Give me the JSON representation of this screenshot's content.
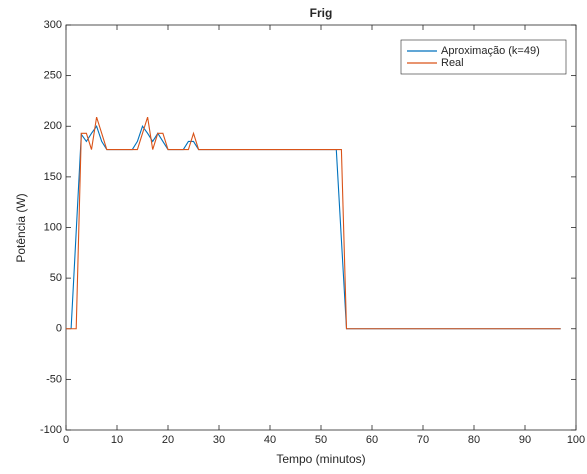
{
  "chart_data": {
    "type": "line",
    "title": "Frig",
    "xlabel": "Tempo (minutos)",
    "ylabel": "Potência (W)",
    "x": [
      0,
      1,
      2,
      3,
      4,
      5,
      6,
      7,
      8,
      9,
      10,
      11,
      12,
      13,
      14,
      15,
      16,
      17,
      18,
      19,
      20,
      21,
      22,
      23,
      24,
      25,
      26,
      27,
      28,
      29,
      30,
      31,
      32,
      33,
      34,
      35,
      36,
      37,
      38,
      39,
      40,
      41,
      42,
      43,
      44,
      45,
      46,
      47,
      48,
      49,
      50,
      51,
      52,
      53,
      54,
      55,
      56,
      57,
      58,
      59,
      60,
      61,
      62,
      63,
      64,
      65,
      66,
      67,
      68,
      69,
      70,
      71,
      72,
      73,
      74,
      75,
      76,
      77,
      78,
      79,
      80,
      81,
      82,
      83,
      84,
      85,
      86,
      87,
      88,
      89,
      90,
      91,
      92,
      93,
      94,
      95,
      96,
      97
    ],
    "series": [
      {
        "name": "Aproximação (k=49)",
        "color": "#0072bd",
        "values": [
          null,
          0,
          96,
          192,
          185,
          193,
          200,
          185,
          177,
          177,
          177,
          177,
          177,
          177,
          185,
          200,
          193,
          185,
          193,
          185,
          177,
          177,
          177,
          177,
          185,
          185,
          177,
          177,
          177,
          177,
          177,
          177,
          177,
          177,
          177,
          177,
          177,
          177,
          177,
          177,
          177,
          177,
          177,
          177,
          177,
          177,
          177,
          177,
          177,
          177,
          177,
          177,
          177,
          177,
          88,
          0,
          0,
          0,
          0,
          0,
          0,
          0,
          0,
          0,
          0,
          0,
          0,
          0,
          0,
          0,
          0,
          0,
          0,
          0,
          0,
          0,
          0,
          0,
          0,
          0,
          0,
          0,
          0,
          0,
          0,
          0,
          0,
          0,
          0,
          0,
          0,
          0,
          0,
          0,
          0,
          0,
          0,
          0
        ]
      },
      {
        "name": "Real",
        "color": "#d95319",
        "values": [
          0,
          0,
          0,
          193,
          193,
          177,
          209,
          193,
          177,
          177,
          177,
          177,
          177,
          177,
          177,
          193,
          209,
          177,
          193,
          193,
          177,
          177,
          177,
          177,
          177,
          193,
          177,
          177,
          177,
          177,
          177,
          177,
          177,
          177,
          177,
          177,
          177,
          177,
          177,
          177,
          177,
          177,
          177,
          177,
          177,
          177,
          177,
          177,
          177,
          177,
          177,
          177,
          177,
          177,
          177,
          0,
          0,
          0,
          0,
          0,
          0,
          0,
          0,
          0,
          0,
          0,
          0,
          0,
          0,
          0,
          0,
          0,
          0,
          0,
          0,
          0,
          0,
          0,
          0,
          0,
          0,
          0,
          0,
          0,
          0,
          0,
          0,
          0,
          0,
          0,
          0,
          0,
          0,
          0,
          0,
          0,
          0,
          0
        ]
      }
    ],
    "xlim": [
      0,
      100
    ],
    "xticks": [
      0,
      10,
      20,
      30,
      40,
      50,
      60,
      70,
      80,
      90,
      100
    ],
    "ylim": [
      -100,
      300
    ],
    "yticks": [
      -100,
      -50,
      0,
      50,
      100,
      150,
      200,
      250,
      300
    ],
    "legend": "upper right"
  }
}
